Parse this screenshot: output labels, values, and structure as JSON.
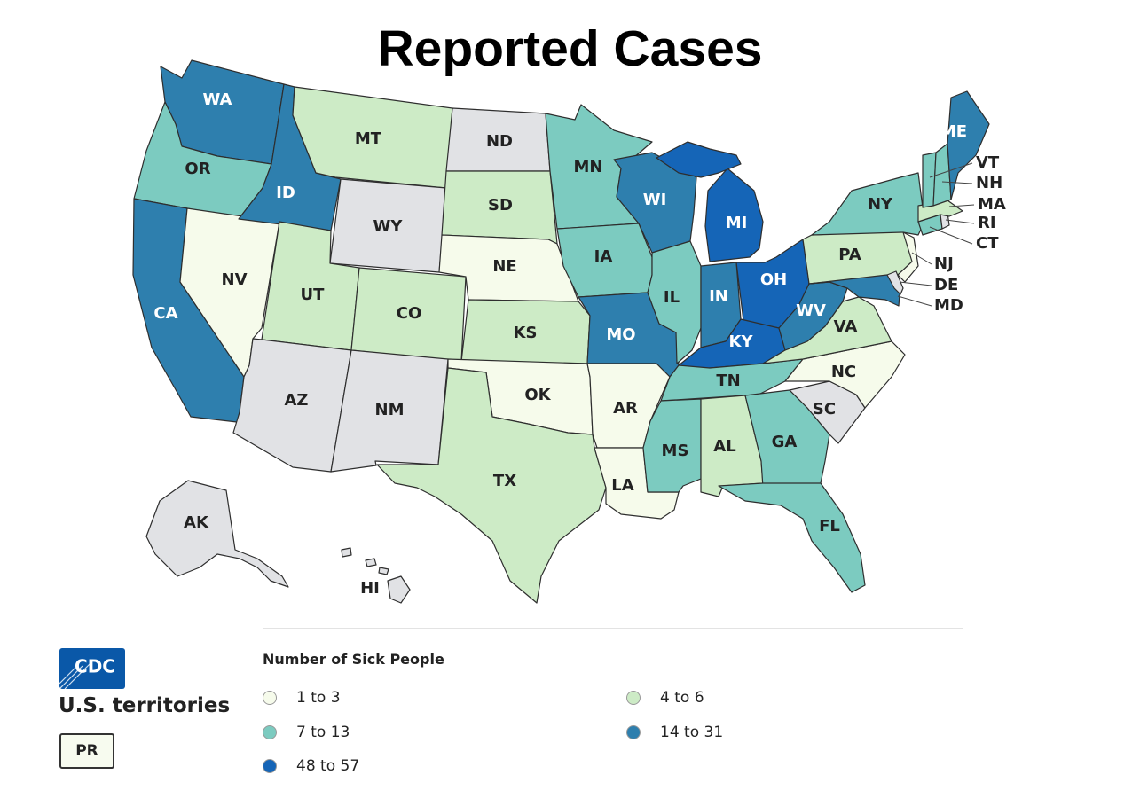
{
  "title": "Reported Cases",
  "legend": {
    "title": "Number of Sick People",
    "items": [
      {
        "label": "1 to 3",
        "color": "#f6fbeb"
      },
      {
        "label": "4 to 6",
        "color": "#cdebc6"
      },
      {
        "label": "7 to 13",
        "color": "#7ccbc0"
      },
      {
        "label": "14 to 31",
        "color": "#2e7fae"
      },
      {
        "label": "48 to 57",
        "color": "#1565b7"
      }
    ]
  },
  "no_cases_color": "#e1e2e5",
  "states": {
    "WA": 4,
    "OR": 3,
    "CA": 4,
    "ID": 4,
    "NV": 1,
    "MT": 2,
    "WY": 0,
    "UT": 2,
    "AZ": 0,
    "CO": 2,
    "NM": 0,
    "ND": 0,
    "SD": 2,
    "NE": 1,
    "KS": 2,
    "OK": 1,
    "TX": 2,
    "MN": 3,
    "IA": 3,
    "MO": 4,
    "AR": 1,
    "LA": 1,
    "WI": 4,
    "IL": 3,
    "MI": 5,
    "IN": 4,
    "OH": 5,
    "KY": 5,
    "TN": 3,
    "MS": 3,
    "AL": 2,
    "GA": 3,
    "FL": 3,
    "SC": 0,
    "NC": 1,
    "VA": 2,
    "WV": 4,
    "MD": 4,
    "DE": 0,
    "PA": 2,
    "NJ": 1,
    "NY": 3,
    "CT": 3,
    "RI": 0,
    "MA": 2,
    "VT": 3,
    "NH": 3,
    "ME": 4,
    "AK": 0,
    "HI": 0
  },
  "callout_labels": [
    "VT",
    "NH",
    "MA",
    "RI",
    "CT",
    "NJ",
    "DE",
    "MD"
  ],
  "logo_text": "CDC",
  "territories_label": "U.S. territories",
  "territory_button": "PR"
}
